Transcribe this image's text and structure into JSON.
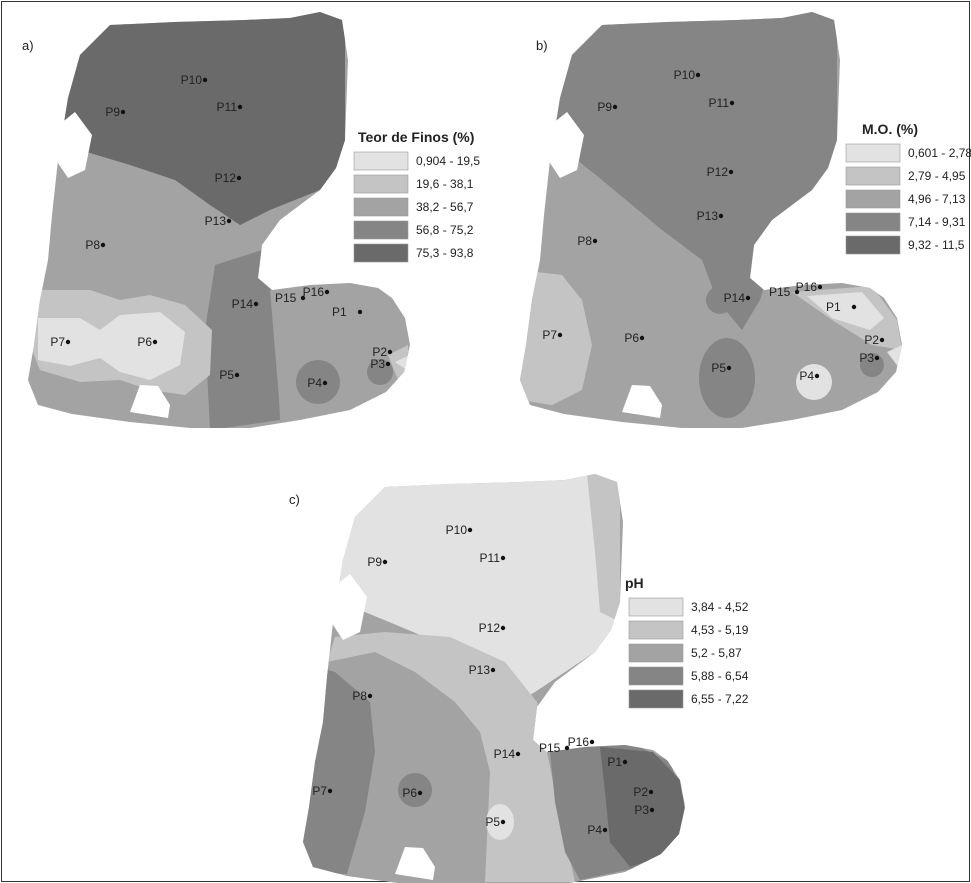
{
  "panels": [
    {
      "id": "a",
      "label": "a)",
      "legend": {
        "title": "Teor de Finos (%)",
        "classes": [
          {
            "range": "0,904 - 19,5",
            "color": "#e2e2e2"
          },
          {
            "range": "19,6 - 38,1",
            "color": "#c4c4c4"
          },
          {
            "range": "38,2 - 56,7",
            "color": "#a3a3a3"
          },
          {
            "range": "56,8 - 75,2",
            "color": "#858585"
          },
          {
            "range": "75,3 - 93,8",
            "color": "#6a6a6a"
          }
        ]
      },
      "points": [
        "P1",
        "P2",
        "P3",
        "P4",
        "P5",
        "P6",
        "P7",
        "P8",
        "P9",
        "P10",
        "P11",
        "P12",
        "P13",
        "P14",
        "P15",
        "P16"
      ]
    },
    {
      "id": "b",
      "label": "b)",
      "legend": {
        "title": "M.O. (%)",
        "classes": [
          {
            "range": "0,601 - 2,78",
            "color": "#e2e2e2"
          },
          {
            "range": "2,79 - 4,95",
            "color": "#c4c4c4"
          },
          {
            "range": "4,96 - 7,13",
            "color": "#a3a3a3"
          },
          {
            "range": "7,14 - 9,31",
            "color": "#858585"
          },
          {
            "range": "9,32 - 11,5",
            "color": "#6a6a6a"
          }
        ]
      },
      "points": [
        "P1",
        "P2",
        "P3",
        "P4",
        "P5",
        "P6",
        "P7",
        "P8",
        "P9",
        "P10",
        "P11",
        "P12",
        "P13",
        "P14",
        "P15",
        "P16"
      ]
    },
    {
      "id": "c",
      "label": "c)",
      "legend": {
        "title": "pH",
        "classes": [
          {
            "range": "3,84 - 4,52",
            "color": "#e2e2e2"
          },
          {
            "range": "4,53 - 5,19",
            "color": "#c4c4c4"
          },
          {
            "range": "5,2 - 5,87",
            "color": "#a3a3a3"
          },
          {
            "range": "5,88 - 6,54",
            "color": "#858585"
          },
          {
            "range": "6,55 - 7,22",
            "color": "#6a6a6a"
          }
        ]
      },
      "points": [
        "P1",
        "P2",
        "P3",
        "P4",
        "P5",
        "P6",
        "P7",
        "P8",
        "P9",
        "P10",
        "P11",
        "P12",
        "P13",
        "P14",
        "P15",
        "P16"
      ]
    }
  ]
}
